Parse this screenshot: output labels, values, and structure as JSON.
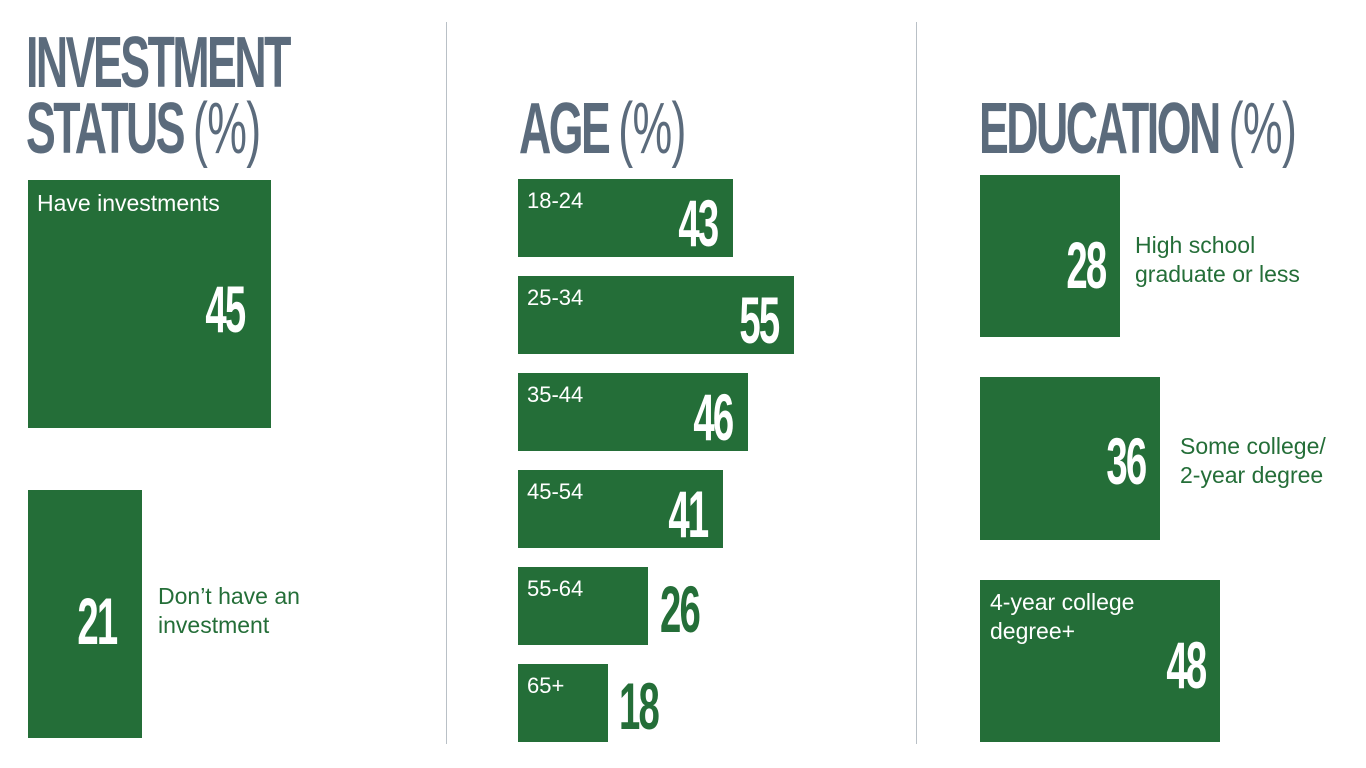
{
  "chart_data": [
    {
      "type": "bar",
      "title": "INVESTMENT STATUS",
      "title_lines": [
        "INVESTMENT",
        "STATUS"
      ],
      "unit": "(%)",
      "categories": [
        "Have investments",
        "Don’t have an investment"
      ],
      "category_lines": [
        [
          "Have investments"
        ],
        [
          "Don’t have an",
          "investment"
        ]
      ],
      "values": [
        45,
        21
      ],
      "bar_color": "#246e38"
    },
    {
      "type": "bar",
      "title": "AGE",
      "unit": "(%)",
      "categories": [
        "18-24",
        "25-34",
        "35-44",
        "45-54",
        "55-64",
        "65+"
      ],
      "values": [
        43,
        55,
        46,
        41,
        26,
        18
      ],
      "bar_color": "#246e38"
    },
    {
      "type": "bar",
      "title": "EDUCATION",
      "unit": "(%)",
      "categories": [
        "High school graduate or less",
        "Some college/ 2-year degree",
        "4-year college degree+"
      ],
      "category_lines": [
        [
          "High school",
          "graduate or less"
        ],
        [
          "Some college/",
          "2-year degree"
        ],
        [
          "4-year college",
          "degree+"
        ]
      ],
      "values": [
        28,
        36,
        48
      ],
      "bar_color": "#246e38"
    }
  ],
  "colors": {
    "title": "#5b6b7c",
    "bar": "#246e38",
    "divider": "#b9c0c6",
    "background": "#ffffff"
  }
}
